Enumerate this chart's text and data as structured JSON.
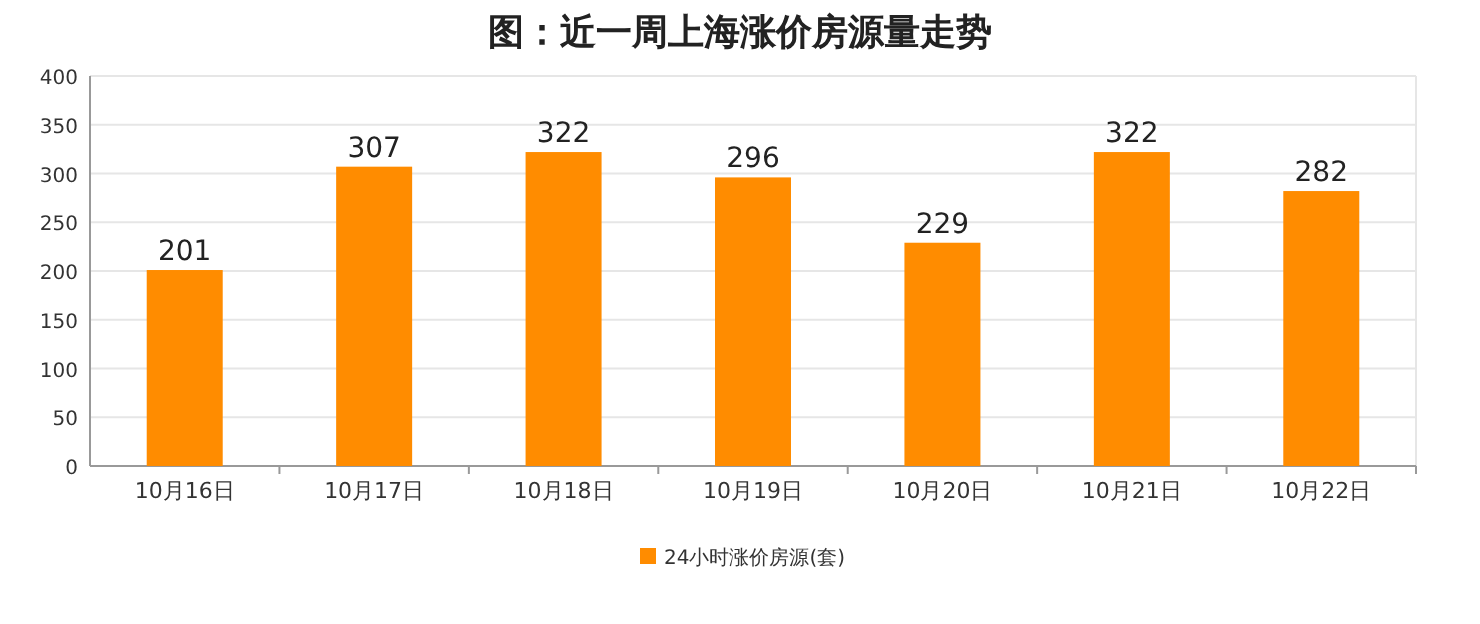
{
  "chart_data": {
    "type": "bar",
    "title": "图：近一周上海涨价房源量走势",
    "categories": [
      "10月16日",
      "10月17日",
      "10月18日",
      "10月19日",
      "10月20日",
      "10月21日",
      "10月22日"
    ],
    "series": [
      {
        "name": "24小时涨价房源(套)",
        "color": "#ff8c00",
        "values": [
          201,
          307,
          322,
          296,
          229,
          322,
          282
        ]
      }
    ],
    "ylim": [
      0,
      400
    ],
    "yticks": [
      0,
      50,
      100,
      150,
      200,
      250,
      300,
      350,
      400
    ],
    "grid": "y",
    "legend": "bottom",
    "data_labels": true
  }
}
